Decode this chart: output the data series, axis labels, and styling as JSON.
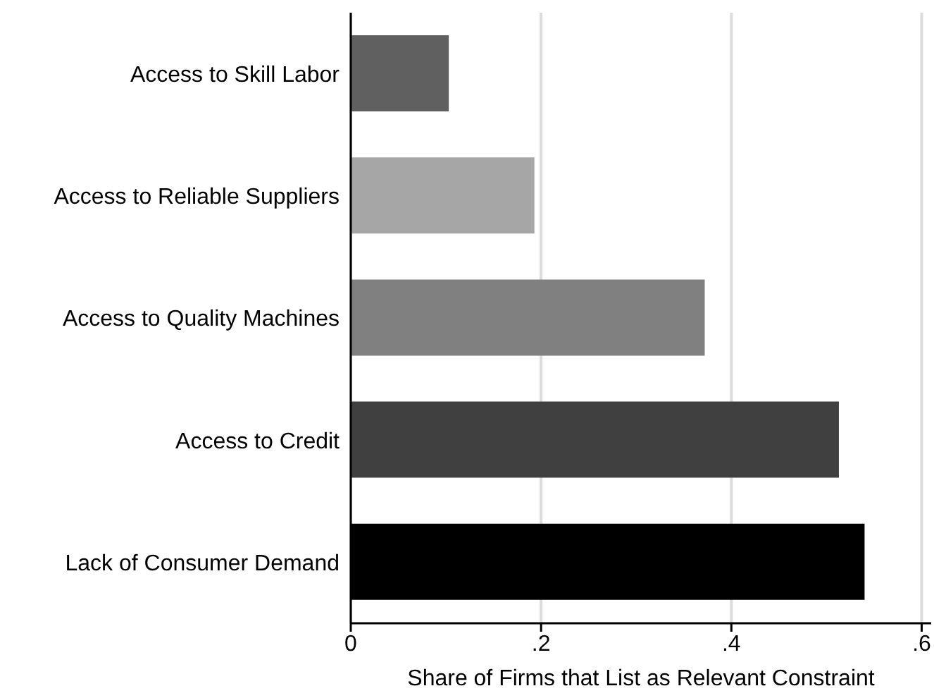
{
  "chart_data": {
    "type": "bar",
    "orientation": "horizontal",
    "xlabel": "Share of Firms that List as Relevant Constraint",
    "categories": [
      "Access to Skill Labor",
      "Access to Reliable Suppliers",
      "Access to Quality Machines",
      "Access to Credit",
      "Lack of Consumer Demand"
    ],
    "values": [
      0.103,
      0.193,
      0.372,
      0.513,
      0.54
    ],
    "colors": [
      "#606060",
      "#a6a6a6",
      "#808080",
      "#404040",
      "#000000"
    ],
    "xlim": [
      0,
      0.61
    ],
    "xticks": [
      0,
      {
        "value": 0.2,
        "label": ".2"
      },
      {
        "value": 0.4,
        "label": ".4"
      },
      {
        "value": 0.6,
        "label": ".6"
      }
    ],
    "grid": "x"
  }
}
